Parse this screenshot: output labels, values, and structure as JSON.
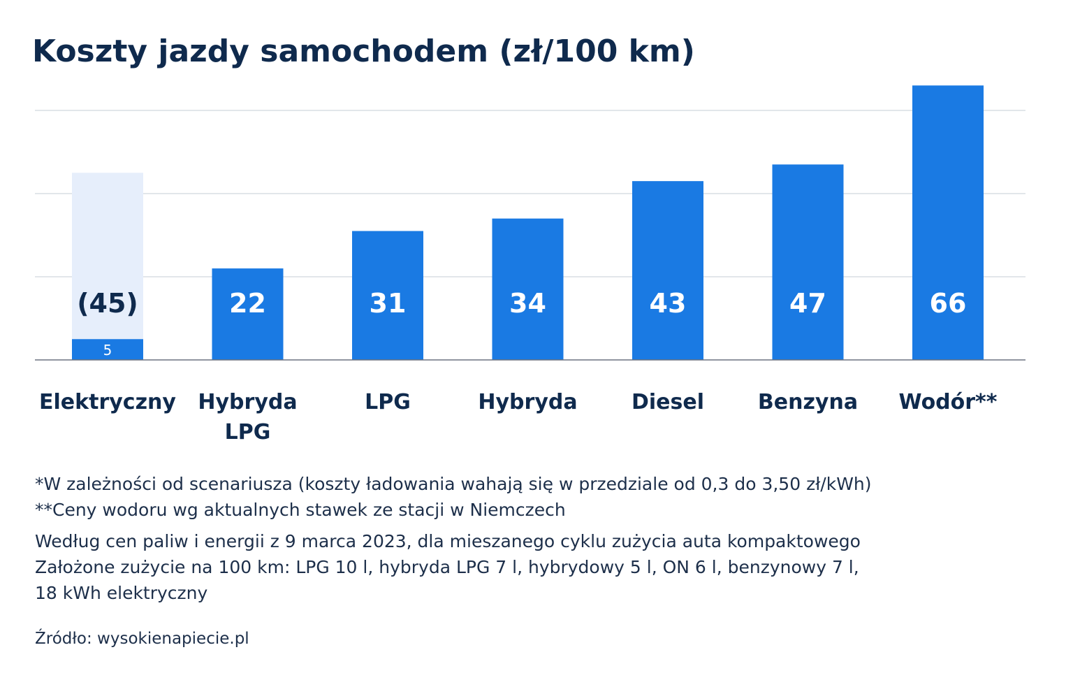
{
  "title": "Koszty jazdy samochodem (zł/100 km)",
  "colors": {
    "bar": "#1a7ae3",
    "bar_range": "#e6eefb",
    "text_dark": "#0f2a4d",
    "bar_label": "#ffffff",
    "grid": "#d9dde3",
    "baseline": "#6b7280"
  },
  "chart_data": {
    "type": "bar",
    "categories": [
      [
        "Elektryczny"
      ],
      [
        "Hybryda",
        "LPG"
      ],
      [
        "LPG"
      ],
      [
        "Hybryda"
      ],
      [
        "Diesel"
      ],
      [
        "Benzyna"
      ],
      [
        "Wodór**"
      ]
    ],
    "values": [
      5,
      22,
      31,
      34,
      43,
      47,
      66
    ],
    "data_labels": [
      "5",
      "22",
      "31",
      "34",
      "43",
      "47",
      "66"
    ],
    "range_bar": {
      "category_index": 0,
      "max_value": 45,
      "label": "(45)"
    },
    "ylim": [
      0,
      66
    ],
    "gridlines": [
      20,
      40,
      60
    ],
    "grid": true,
    "legend": "none"
  },
  "notes": {
    "footnote_1": "*W zależności od scenariusza (koszty ładowania wahają się w przedziale od 0,3 do 3,50 zł/kWh)",
    "footnote_2": "**Ceny wodoru wg aktualnych stawek ze stacji w Niemczech",
    "method_1": "Według cen paliw i energii z 9 marca 2023, dla mieszanego cyklu zużycia auta kompaktowego",
    "method_2": "Założone zużycie na 100 km: LPG 10 l, hybryda LPG 7 l, hybrydowy 5 l, ON 6 l, benzynowy 7 l,",
    "method_3": "18 kWh elektryczny"
  },
  "source": "Źródło: wysokienapiecie.pl"
}
